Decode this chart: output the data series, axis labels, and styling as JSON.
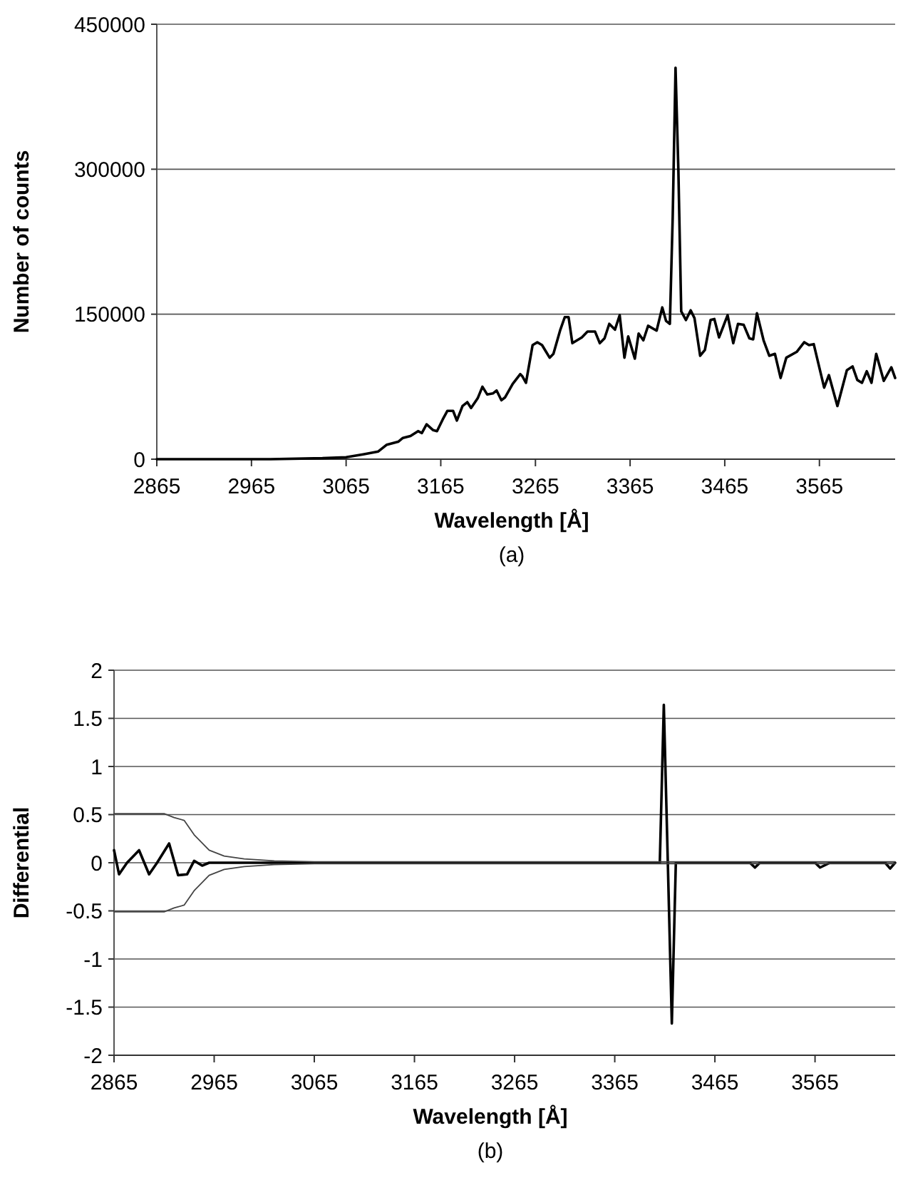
{
  "chart_data": [
    {
      "type": "line",
      "xlabel": "Wavelength [Å]",
      "ylabel": "Number of counts",
      "annotations": [
        "(a)"
      ],
      "xlim": [
        2865,
        3645
      ],
      "xticks": [
        2865,
        2965,
        3065,
        3165,
        3265,
        3365,
        3465,
        3565
      ],
      "ylim": [
        0,
        450000
      ],
      "yticks": [
        0,
        150000,
        300000,
        450000
      ],
      "grid": "y",
      "series": [
        {
          "color": "#000000",
          "x": [
            2865,
            2985,
            3040,
            3065,
            3083,
            3099,
            3108,
            3120,
            3125,
            3133,
            3141,
            3145,
            3150,
            3157,
            3161,
            3167,
            3172,
            3178,
            3182,
            3188,
            3193,
            3197,
            3204,
            3209,
            3214,
            3220,
            3224,
            3229,
            3233,
            3241,
            3249,
            3251,
            3255,
            3262,
            3267,
            3272,
            3280,
            3284,
            3291,
            3296,
            3300,
            3304,
            3314,
            3320,
            3328,
            3333,
            3338,
            3343,
            3349,
            3354,
            3359,
            3363,
            3370,
            3374,
            3379,
            3384,
            3393,
            3399,
            3403,
            3407,
            3410,
            3413,
            3416,
            3419,
            3424,
            3429,
            3433,
            3439,
            3444,
            3450,
            3454,
            3459,
            3468,
            3474,
            3479,
            3485,
            3491,
            3495,
            3499,
            3506,
            3512,
            3518,
            3524,
            3530,
            3541,
            3549,
            3554,
            3559,
            3570,
            3575,
            3584,
            3594,
            3600,
            3605,
            3610,
            3615,
            3620,
            3625,
            3633,
            3641,
            3645
          ],
          "values": [
            0,
            0,
            1000,
            2000,
            5000,
            8000,
            15000,
            18000,
            22000,
            24000,
            29000,
            27000,
            36000,
            30000,
            29000,
            41000,
            50000,
            50000,
            40000,
            55000,
            59000,
            53000,
            63000,
            75000,
            67000,
            68000,
            71000,
            61000,
            64000,
            78000,
            88000,
            86000,
            79000,
            118000,
            121000,
            118000,
            105000,
            109000,
            133000,
            147000,
            147000,
            120000,
            126000,
            132000,
            132000,
            120000,
            125000,
            140000,
            134000,
            149000,
            105000,
            127000,
            104000,
            130000,
            123000,
            138000,
            133000,
            157000,
            143000,
            140000,
            250000,
            405000,
            299000,
            153000,
            144000,
            154000,
            146000,
            107000,
            113000,
            144000,
            145000,
            126000,
            149000,
            120000,
            140000,
            139000,
            125000,
            124000,
            151000,
            123000,
            107000,
            109000,
            84000,
            105000,
            111000,
            121000,
            118000,
            119000,
            74000,
            87000,
            55000,
            92000,
            96000,
            82000,
            79000,
            91000,
            79000,
            109000,
            81000,
            95000,
            84000
          ]
        }
      ]
    },
    {
      "type": "line",
      "xlabel": "Wavelength [Å]",
      "ylabel": "Differential",
      "annotations": [
        "(b)"
      ],
      "xlim": [
        2865,
        3645
      ],
      "xticks": [
        2865,
        2965,
        3065,
        3165,
        3265,
        3365,
        3465,
        3565
      ],
      "ylim": [
        -2,
        2
      ],
      "yticks": [
        -2,
        -1.5,
        -1,
        -0.5,
        0,
        0.5,
        1,
        1.5,
        2
      ],
      "grid": "y",
      "series": [
        {
          "color": "#000000",
          "x": [
            2865,
            2870,
            2878,
            2890,
            2900,
            2908,
            2920,
            2929,
            2938,
            2945,
            2953,
            2960,
            3000,
            3410,
            3414,
            3418,
            3422,
            3426,
            3500,
            3505,
            3510,
            3565,
            3570,
            3580,
            3635,
            3640,
            3645
          ],
          "values": [
            0.13,
            -0.12,
            0,
            0.13,
            -0.12,
            0,
            0.2,
            -0.13,
            -0.12,
            0.02,
            -0.03,
            0,
            0,
            0,
            1.64,
            0,
            -1.67,
            0,
            0,
            -0.05,
            0,
            0,
            -0.05,
            0,
            0,
            -0.06,
            0
          ]
        },
        {
          "color": "#444444",
          "x": [
            2865,
            2915,
            2925,
            2935,
            2945,
            2960,
            2975,
            2995,
            3025,
            3065,
            3645
          ],
          "values": [
            0.51,
            0.51,
            0.47,
            0.44,
            0.29,
            0.13,
            0.07,
            0.04,
            0.02,
            0.01,
            0.01
          ]
        },
        {
          "color": "#444444",
          "x": [
            2865,
            2915,
            2925,
            2935,
            2945,
            2960,
            2975,
            2995,
            3025,
            3065,
            3645
          ],
          "values": [
            -0.51,
            -0.51,
            -0.47,
            -0.44,
            -0.29,
            -0.13,
            -0.07,
            -0.04,
            -0.02,
            -0.01,
            -0.01
          ]
        }
      ]
    }
  ]
}
